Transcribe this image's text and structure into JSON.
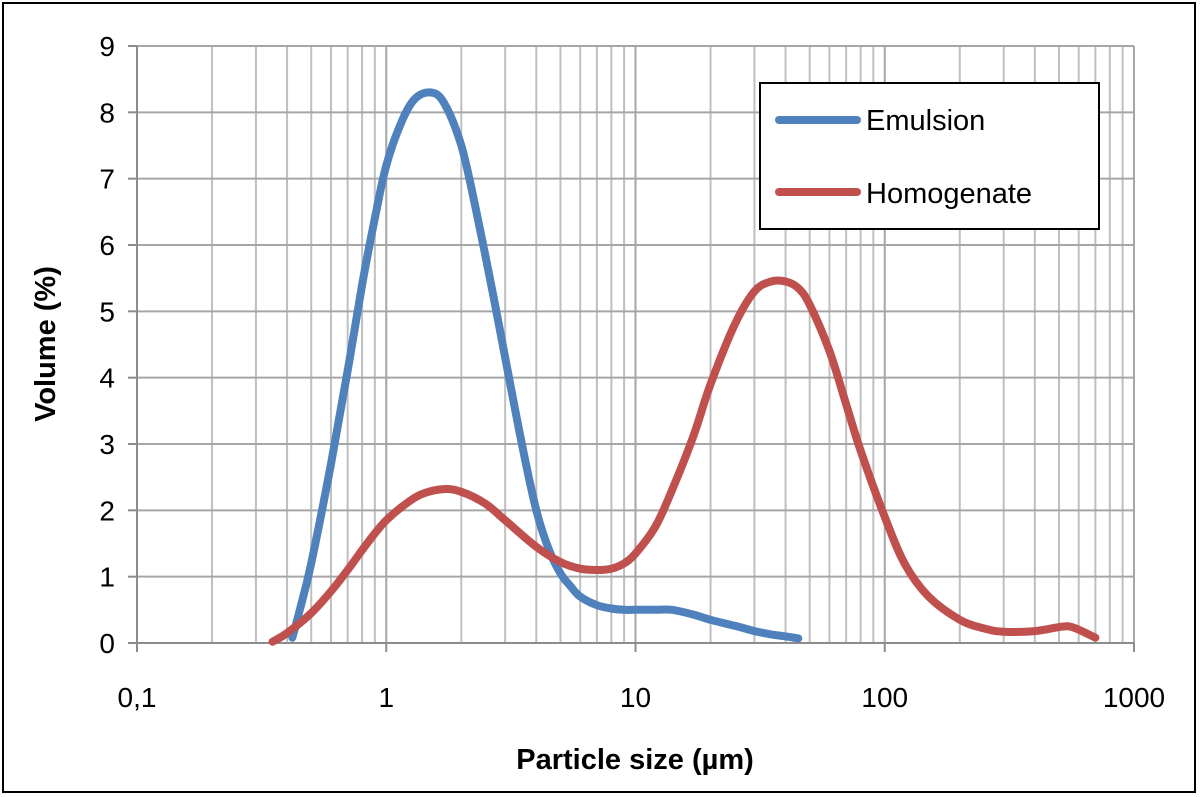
{
  "chart_data": {
    "type": "line",
    "title": "",
    "xlabel": "Particle size (µm)",
    "ylabel": "Volume (%)",
    "xscale": "log",
    "xlim": [
      0.1,
      1000
    ],
    "ylim": [
      0,
      9
    ],
    "grid": true,
    "legend_position": "top-right",
    "x_tick_labels": [
      "0,1",
      "1",
      "10",
      "100",
      "1000"
    ],
    "x_tick_values": [
      0.1,
      1,
      10,
      100,
      1000
    ],
    "y_tick_labels": [
      "0",
      "1",
      "2",
      "3",
      "4",
      "5",
      "6",
      "7",
      "8",
      "9"
    ],
    "y_tick_values": [
      0,
      1,
      2,
      3,
      4,
      5,
      6,
      7,
      8,
      9
    ],
    "series": [
      {
        "name": "Emulsion",
        "color": "#4F81BD",
        "x": [
          0.42,
          0.45,
          0.5,
          0.6,
          0.7,
          0.8,
          0.9,
          1.0,
          1.15,
          1.3,
          1.5,
          1.7,
          2.0,
          2.3,
          2.7,
          3.0,
          3.5,
          4.0,
          4.5,
          5.0,
          5.5,
          6.0,
          7.0,
          8.0,
          9.0,
          10.0,
          12.0,
          14.0,
          17.0,
          20.0,
          25.0,
          30.0,
          35.0,
          40.0,
          45.0
        ],
        "y": [
          0.08,
          0.5,
          1.2,
          2.7,
          4.1,
          5.4,
          6.4,
          7.2,
          7.85,
          8.2,
          8.3,
          8.15,
          7.5,
          6.5,
          5.2,
          4.3,
          3.0,
          2.0,
          1.4,
          1.05,
          0.85,
          0.7,
          0.57,
          0.52,
          0.5,
          0.5,
          0.5,
          0.5,
          0.43,
          0.35,
          0.26,
          0.18,
          0.13,
          0.1,
          0.07
        ]
      },
      {
        "name": "Homogenate",
        "color": "#C0504D",
        "x": [
          0.35,
          0.4,
          0.5,
          0.6,
          0.7,
          0.8,
          0.9,
          1.0,
          1.2,
          1.4,
          1.7,
          2.0,
          2.5,
          3.0,
          4.0,
          5.0,
          6.0,
          7.0,
          8.0,
          9.0,
          10.0,
          12.0,
          14.0,
          17.0,
          20.0,
          25.0,
          30.0,
          35.0,
          40.0,
          45.0,
          50.0,
          60.0,
          70.0,
          80.0,
          100.0,
          120.0,
          150.0,
          200.0,
          250.0,
          300.0,
          400.0,
          500.0,
          550.0,
          600.0,
          700.0
        ],
        "y": [
          0.02,
          0.15,
          0.45,
          0.78,
          1.1,
          1.4,
          1.65,
          1.85,
          2.1,
          2.25,
          2.32,
          2.28,
          2.1,
          1.85,
          1.45,
          1.22,
          1.12,
          1.1,
          1.12,
          1.2,
          1.35,
          1.75,
          2.3,
          3.1,
          3.9,
          4.8,
          5.3,
          5.45,
          5.45,
          5.35,
          5.1,
          4.4,
          3.6,
          2.9,
          1.9,
          1.2,
          0.7,
          0.35,
          0.22,
          0.17,
          0.18,
          0.24,
          0.25,
          0.2,
          0.08
        ]
      }
    ]
  }
}
